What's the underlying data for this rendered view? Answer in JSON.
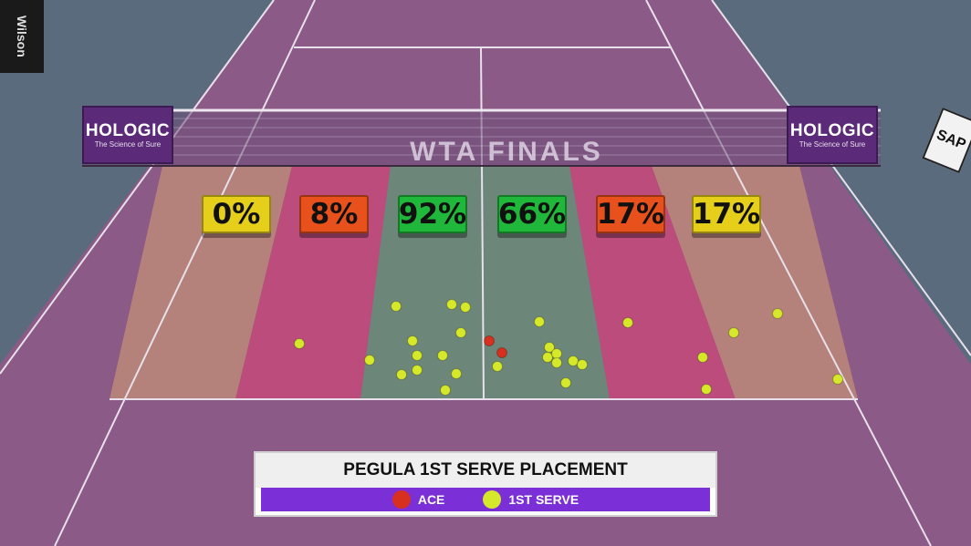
{
  "scene": {
    "net_sponsor": {
      "brand": "HOLOGIC",
      "tagline": "The Science of Sure"
    },
    "net_title": "WTA FINALS",
    "side_sponsors": {
      "left": "Wilson",
      "right": "SAP"
    }
  },
  "zones": [
    {
      "pct": "0%",
      "color": "#e6cf1a"
    },
    {
      "pct": "8%",
      "color": "#e8501c"
    },
    {
      "pct": "92%",
      "color": "#1fb83a"
    },
    {
      "pct": "66%",
      "color": "#1fb83a"
    },
    {
      "pct": "17%",
      "color": "#e8501c"
    },
    {
      "pct": "17%",
      "color": "#e6cf1a"
    }
  ],
  "legend": {
    "title": "PEGULA 1ST SERVE PLACEMENT",
    "items": [
      {
        "label": "ACE",
        "color": "#d8301e"
      },
      {
        "label": "1ST SERVE",
        "color": "#d6e82a"
      }
    ]
  },
  "colors": {
    "court_purple": "#8b5a86",
    "outer": "#5a6b7e",
    "ace": "#d8301e",
    "serve": "#d6e82a"
  }
}
